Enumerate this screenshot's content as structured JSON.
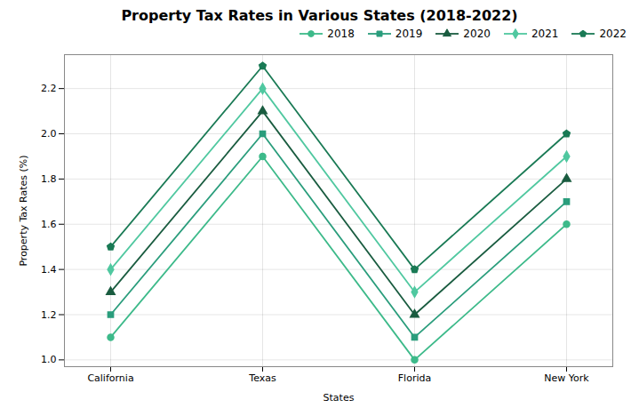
{
  "chart_data": {
    "type": "line",
    "title": "Property Tax Rates in Various States (2018-2022)",
    "xlabel": "States",
    "ylabel": "Property Tax Rates (%)",
    "categories": [
      "California",
      "Texas",
      "Florida",
      "New York"
    ],
    "series": [
      {
        "name": "2018",
        "color": "#3dba8a",
        "marker": "circle",
        "values": [
          1.1,
          1.9,
          1.0,
          1.6
        ]
      },
      {
        "name": "2019",
        "color": "#2a9d7c",
        "marker": "square",
        "values": [
          1.2,
          2.0,
          1.1,
          1.7
        ]
      },
      {
        "name": "2020",
        "color": "#1a5c40",
        "marker": "triangle",
        "values": [
          1.3,
          2.1,
          1.2,
          1.8
        ]
      },
      {
        "name": "2021",
        "color": "#50c8a0",
        "marker": "diamond",
        "values": [
          1.4,
          2.2,
          1.3,
          1.9
        ]
      },
      {
        "name": "2022",
        "color": "#1a7a55",
        "marker": "pentagon",
        "values": [
          1.5,
          2.3,
          1.4,
          2.0
        ]
      }
    ],
    "ylim": [
      0.97,
      2.35
    ],
    "yticks": [
      {
        "value": 1,
        "label": "1.0"
      },
      1.2,
      1.4,
      1.6,
      1.8,
      {
        "value": 2,
        "label": "2.0"
      },
      2.2
    ],
    "grid": true,
    "legend": "upper-right"
  }
}
